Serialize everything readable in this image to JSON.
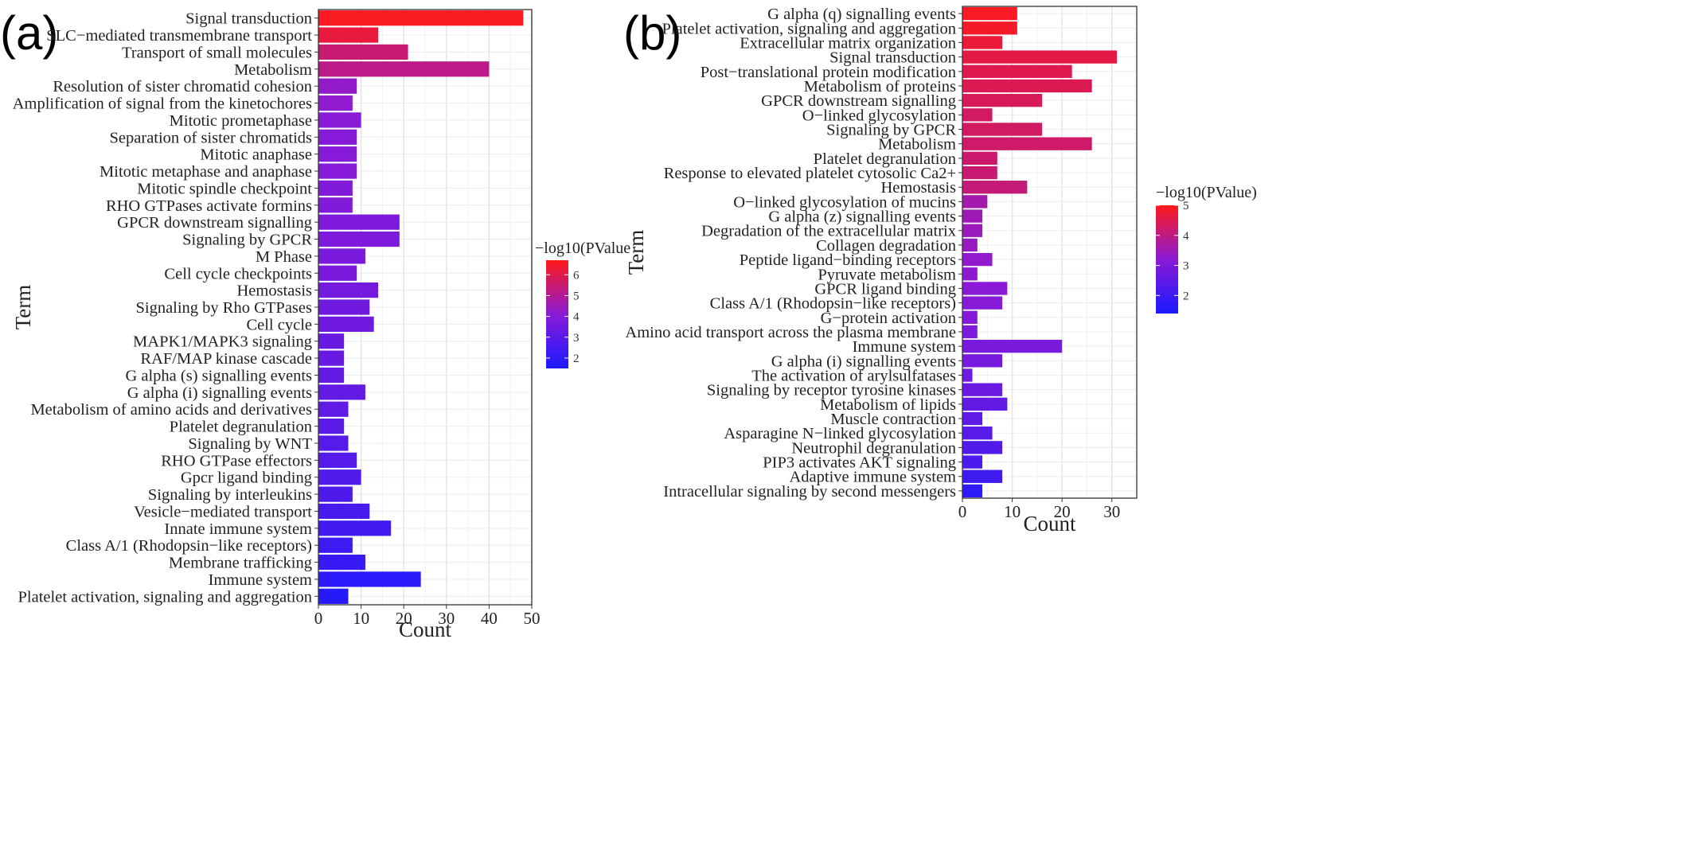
{
  "chart_data": [
    {
      "panel_label": "(a)",
      "type": "bar",
      "orientation": "horizontal",
      "xlabel": "Count",
      "ylabel": "Term",
      "xlim": [
        0,
        50
      ],
      "x_ticks": [
        0,
        10,
        20,
        30,
        40,
        50
      ],
      "grid": true,
      "legend": {
        "title": "−log10(PValue",
        "placement": "right",
        "range": [
          1.5,
          6.7
        ],
        "ticks": [
          2,
          3,
          4,
          5,
          6
        ],
        "colors": [
          "#1a1aff",
          "#8a1ad6",
          "#ff1a1a"
        ]
      },
      "categories": [
        "Signal transduction",
        "SLC−mediated transmembrane transport",
        "Transport of small molecules",
        "Metabolism",
        "Resolution of sister chromatid cohesion",
        "Amplification of signal from the kinetochores",
        "Mitotic prometaphase",
        "Separation of sister chromatids",
        "Mitotic anaphase",
        "Mitotic metaphase and anaphase",
        "Mitotic spindle checkpoint",
        "RHO GTPases activate formins",
        "GPCR downstream signalling",
        "Signaling by GPCR",
        "M Phase",
        "Cell cycle checkpoints",
        "Hemostasis",
        "Signaling by Rho GTPases",
        "Cell cycle",
        "MAPK1/MAPK3 signaling",
        "RAF/MAP kinase cascade",
        "G alpha (s) signalling events",
        "G alpha (i) signalling events",
        "Metabolism of amino acids and derivatives",
        "Platelet degranulation",
        "Signaling by WNT",
        "RHO GTPase effectors",
        "Gpcr ligand binding",
        "Signaling by interleukins",
        "Vesicle−mediated transport",
        "Innate immune system",
        "Class A/1 (Rhodopsin−like receptors)",
        "Membrane trafficking",
        "Immune system",
        "Platelet activation, signaling and aggregation"
      ],
      "values": [
        48,
        14,
        21,
        40,
        9,
        8,
        10,
        9,
        9,
        9,
        8,
        8,
        19,
        19,
        11,
        9,
        14,
        12,
        13,
        6,
        6,
        6,
        11,
        7,
        6,
        7,
        9,
        10,
        8,
        12,
        17,
        8,
        11,
        24,
        7
      ],
      "pvalue_log10": [
        6.6,
        6.2,
        5.5,
        5.2,
        4.3,
        4.2,
        4.1,
        4.0,
        4.0,
        4.0,
        3.9,
        3.9,
        3.8,
        3.8,
        3.7,
        3.7,
        3.6,
        3.5,
        3.5,
        3.3,
        3.3,
        3.2,
        3.2,
        3.1,
        3.0,
        2.9,
        2.9,
        2.8,
        2.7,
        2.6,
        2.4,
        2.3,
        2.2,
        1.9,
        1.8
      ]
    },
    {
      "panel_label": "(b)",
      "type": "bar",
      "orientation": "horizontal",
      "xlabel": "Count",
      "ylabel": "Term",
      "xlim": [
        0,
        35
      ],
      "x_ticks": [
        0,
        10,
        20,
        30
      ],
      "grid": true,
      "legend": {
        "title": "−log10(PValue)",
        "placement": "right",
        "range": [
          1.4,
          5.0
        ],
        "ticks": [
          2,
          3,
          4,
          5
        ],
        "colors": [
          "#1a1aff",
          "#8a1ad6",
          "#ff1a1a"
        ]
      },
      "categories": [
        "G alpha (q) signalling events",
        "Platelet activation, signaling and aggregation",
        "Extracellular matrix organization",
        "Signal transduction",
        "Post−translational protein modification",
        "Metabolism of proteins",
        "GPCR downstream signalling",
        "O−linked glycosylation",
        "Signaling by GPCR",
        "Metabolism",
        "Platelet degranulation",
        "Response to elevated platelet cytosolic Ca2+",
        "Hemostasis",
        "O−linked glycosylation of mucins",
        "G alpha (z) signalling events",
        "Degradation of the extracellular matrix",
        "Collagen degradation",
        "Peptide ligand−binding receptors",
        "Pyruvate metabolism",
        "GPCR ligand binding",
        "Class A/1 (Rhodopsin−like receptors)",
        "G−protein activation",
        "Amino acid transport across the plasma membrane",
        "Immune system",
        "G alpha (i) signalling events",
        "The activation of arylsulfatases",
        "Signaling by receptor tyrosine kinases",
        "Metabolism of lipids",
        "Muscle contraction",
        "Asparagine N−linked glycosylation",
        "Neutrophil degranulation",
        "PIP3 activates AKT signaling",
        "Adaptive immune system",
        "Intracellular signaling by second messengers"
      ],
      "values": [
        11,
        11,
        8,
        31,
        22,
        26,
        16,
        6,
        16,
        26,
        7,
        7,
        13,
        5,
        4,
        4,
        3,
        6,
        3,
        9,
        8,
        3,
        3,
        20,
        8,
        2,
        8,
        9,
        4,
        6,
        8,
        4,
        8,
        4
      ],
      "pvalue_log10": [
        4.9,
        4.85,
        4.7,
        4.6,
        4.5,
        4.45,
        4.4,
        4.3,
        4.3,
        4.25,
        4.2,
        4.15,
        4.1,
        3.6,
        3.5,
        3.45,
        3.4,
        3.3,
        3.25,
        3.2,
        3.15,
        3.1,
        3.0,
        2.95,
        2.9,
        2.8,
        2.7,
        2.6,
        2.5,
        2.4,
        2.3,
        2.2,
        2.0,
        1.7
      ]
    }
  ]
}
